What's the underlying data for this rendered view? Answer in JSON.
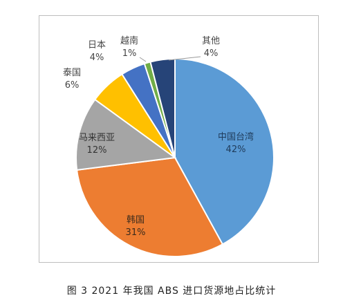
{
  "chart_data": {
    "type": "pie",
    "categories": [
      "中国台湾",
      "韩国",
      "马来西亚",
      "泰国",
      "日本",
      "越南",
      "其他"
    ],
    "values": [
      42,
      31,
      12,
      6,
      4,
      1,
      4
    ],
    "value_labels": [
      "42%",
      "31%",
      "12%",
      "6%",
      "4%",
      "1%",
      "4%"
    ],
    "colors": [
      "#5B9BD5",
      "#ED7D31",
      "#A5A5A5",
      "#FFC000",
      "#4472C4",
      "#70AD47",
      "#264478"
    ],
    "start_angle_deg": 0,
    "direction": "clockwise"
  },
  "caption": "图 3  2021 年我国 ABS 进口货源地占比统计"
}
